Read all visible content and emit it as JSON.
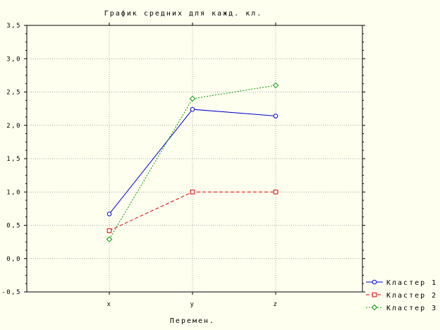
{
  "chart_data": {
    "type": "line",
    "title": "График средних для кажд. кл.",
    "xlabel": "Перемен.",
    "ylabel": "",
    "categories": [
      "x",
      "y",
      "z"
    ],
    "ylim": [
      -0.5,
      3.5
    ],
    "yticks": [
      "-0,5",
      "0,0",
      "0,5",
      "1,0",
      "1,5",
      "2,0",
      "2,5",
      "3,0",
      "3,5"
    ],
    "ytick_values": [
      -0.5,
      0,
      0.5,
      1.0,
      1.5,
      2.0,
      2.5,
      3.0,
      3.5
    ],
    "grid": true,
    "legend_position": "bottom-right",
    "series": [
      {
        "name": "Кластер 1",
        "values": [
          0.67,
          2.24,
          2.14
        ],
        "color": "#0000cc",
        "dash": "solid",
        "marker": "circle"
      },
      {
        "name": "Кластер 2",
        "values": [
          0.42,
          1.0,
          1.0
        ],
        "color": "#dd0000",
        "dash": "dashed",
        "marker": "square"
      },
      {
        "name": "Кластер 3",
        "values": [
          0.29,
          2.4,
          2.6
        ],
        "color": "#009900",
        "dash": "dotted",
        "marker": "diamond"
      }
    ]
  }
}
